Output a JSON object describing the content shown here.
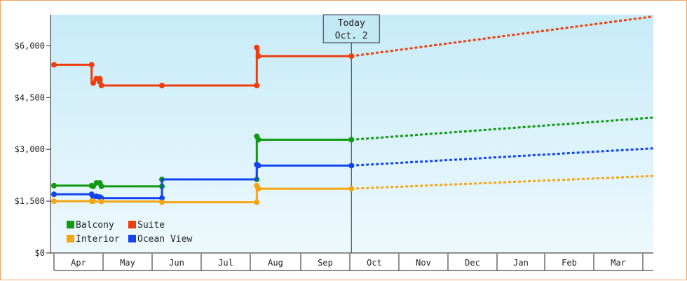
{
  "chart_data": {
    "type": "line",
    "title": "",
    "xlabel": "",
    "ylabel": "",
    "ylim": [
      0,
      6900
    ],
    "yticks": [
      0,
      1500,
      3000,
      4500,
      6000
    ],
    "ytick_labels": [
      "$0",
      "$1,500",
      "$3,000",
      "$4,500",
      "$6,000"
    ],
    "x_months": [
      "Apr",
      "May",
      "Jun",
      "Jul",
      "Aug",
      "Sep",
      "Oct",
      "Nov",
      "Dec",
      "Jan",
      "Feb",
      "Mar"
    ],
    "grid": false,
    "legend_position": "bottom-left",
    "today_marker": {
      "line1": "Today",
      "line2": "Oct. 2",
      "x": "Oct. 2"
    },
    "series": [
      {
        "name": "Suite",
        "color": "#ee3d0c",
        "steps": [
          [
            "Apr 1",
            5450
          ],
          [
            "Apr 24",
            5450
          ],
          [
            "Apr 24",
            4920
          ],
          [
            "Apr 26",
            4920
          ],
          [
            "Apr 26",
            5050
          ],
          [
            "Apr 28",
            5050
          ],
          [
            "Apr 28",
            4920
          ],
          [
            "Apr 29",
            4920
          ],
          [
            "Apr 29",
            5050
          ],
          [
            "Apr 30",
            5050
          ],
          [
            "Apr 30",
            4850
          ],
          [
            "Jun 7",
            4850
          ],
          [
            "Aug 5",
            4850
          ],
          [
            "Aug 5",
            5950
          ],
          [
            "Aug 6",
            5950
          ],
          [
            "Aug 6",
            5700
          ],
          [
            "Oct 2",
            5700
          ]
        ],
        "markers": [
          [
            "Apr 1",
            5450
          ],
          [
            "Apr 24",
            5450
          ],
          [
            "Apr 25",
            4920
          ],
          [
            "Apr 27",
            5050
          ],
          [
            "Apr 29",
            5050
          ],
          [
            "Apr 30",
            4850
          ],
          [
            "Jun 7",
            4850
          ],
          [
            "Aug 5",
            4850
          ],
          [
            "Aug 5",
            5950
          ],
          [
            "Aug 6",
            5700
          ],
          [
            "Oct 2",
            5700
          ]
        ],
        "forecast": [
          [
            "Oct 2",
            5700
          ],
          [
            "Apr 1",
            6850
          ]
        ]
      },
      {
        "name": "Balcony",
        "color": "#119911",
        "steps": [
          [
            "Apr 1",
            1950
          ],
          [
            "Apr 24",
            1950
          ],
          [
            "Apr 24",
            1930
          ],
          [
            "Apr 26",
            1930
          ],
          [
            "Apr 26",
            2030
          ],
          [
            "Apr 29",
            2030
          ],
          [
            "Apr 29",
            1930
          ],
          [
            "Jun 7",
            1930
          ],
          [
            "Jun 7",
            2130
          ],
          [
            "Aug 5",
            2130
          ],
          [
            "Aug 5",
            3380
          ],
          [
            "Aug 6",
            3380
          ],
          [
            "Aug 6",
            3280
          ],
          [
            "Oct 2",
            3280
          ]
        ],
        "markers": [
          [
            "Apr 1",
            1950
          ],
          [
            "Apr 24",
            1950
          ],
          [
            "Apr 25",
            1930
          ],
          [
            "Apr 27",
            2030
          ],
          [
            "Apr 29",
            2030
          ],
          [
            "Apr 30",
            1930
          ],
          [
            "Jun 7",
            1930
          ],
          [
            "Jun 7",
            2130
          ],
          [
            "Aug 5",
            2130
          ],
          [
            "Aug 5",
            3380
          ],
          [
            "Aug 6",
            3280
          ],
          [
            "Oct 2",
            3280
          ]
        ],
        "forecast": [
          [
            "Oct 2",
            3280
          ],
          [
            "Apr 1",
            3920
          ]
        ]
      },
      {
        "name": "Ocean View",
        "color": "#1144ee",
        "steps": [
          [
            "Apr 1",
            1700
          ],
          [
            "Apr 24",
            1700
          ],
          [
            "Apr 24",
            1620
          ],
          [
            "Apr 26",
            1620
          ],
          [
            "Apr 26",
            1640
          ],
          [
            "Apr 29",
            1640
          ],
          [
            "Apr 29",
            1590
          ],
          [
            "Jun 7",
            1590
          ],
          [
            "Jun 7",
            2130
          ],
          [
            "Aug 5",
            2130
          ],
          [
            "Aug 5",
            2560
          ],
          [
            "Aug 6",
            2560
          ],
          [
            "Aug 6",
            2530
          ],
          [
            "Oct 2",
            2530
          ]
        ],
        "markers": [
          [
            "Apr 1",
            1700
          ],
          [
            "Apr 24",
            1700
          ],
          [
            "Apr 25",
            1620
          ],
          [
            "Apr 27",
            1640
          ],
          [
            "Apr 29",
            1620
          ],
          [
            "Apr 30",
            1590
          ],
          [
            "Jun 7",
            1590
          ],
          [
            "Aug 5",
            2560
          ],
          [
            "Aug 6",
            2530
          ],
          [
            "Oct 2",
            2530
          ]
        ],
        "forecast": [
          [
            "Oct 2",
            2530
          ],
          [
            "Apr 1",
            3030
          ]
        ]
      },
      {
        "name": "Interior",
        "color": "#f5a511",
        "steps": [
          [
            "Apr 1",
            1500
          ],
          [
            "Apr 24",
            1500
          ],
          [
            "Apr 24",
            1490
          ],
          [
            "Jun 7",
            1490
          ],
          [
            "Jun 7",
            1470
          ],
          [
            "Aug 5",
            1470
          ],
          [
            "Aug 5",
            1950
          ],
          [
            "Aug 6",
            1950
          ],
          [
            "Aug 6",
            1860
          ],
          [
            "Oct 2",
            1860
          ]
        ],
        "markers": [
          [
            "Apr 1",
            1500
          ],
          [
            "Apr 24",
            1500
          ],
          [
            "Apr 25",
            1500
          ],
          [
            "Apr 30",
            1490
          ],
          [
            "Jun 7",
            1470
          ],
          [
            "Aug 5",
            1470
          ],
          [
            "Aug 5",
            1950
          ],
          [
            "Aug 6",
            1860
          ],
          [
            "Oct 2",
            1860
          ]
        ],
        "forecast": [
          [
            "Oct 2",
            1860
          ],
          [
            "Apr 1",
            2230
          ]
        ]
      }
    ],
    "legend_order": [
      "Balcony",
      "Suite",
      "Interior",
      "Ocean View"
    ]
  }
}
